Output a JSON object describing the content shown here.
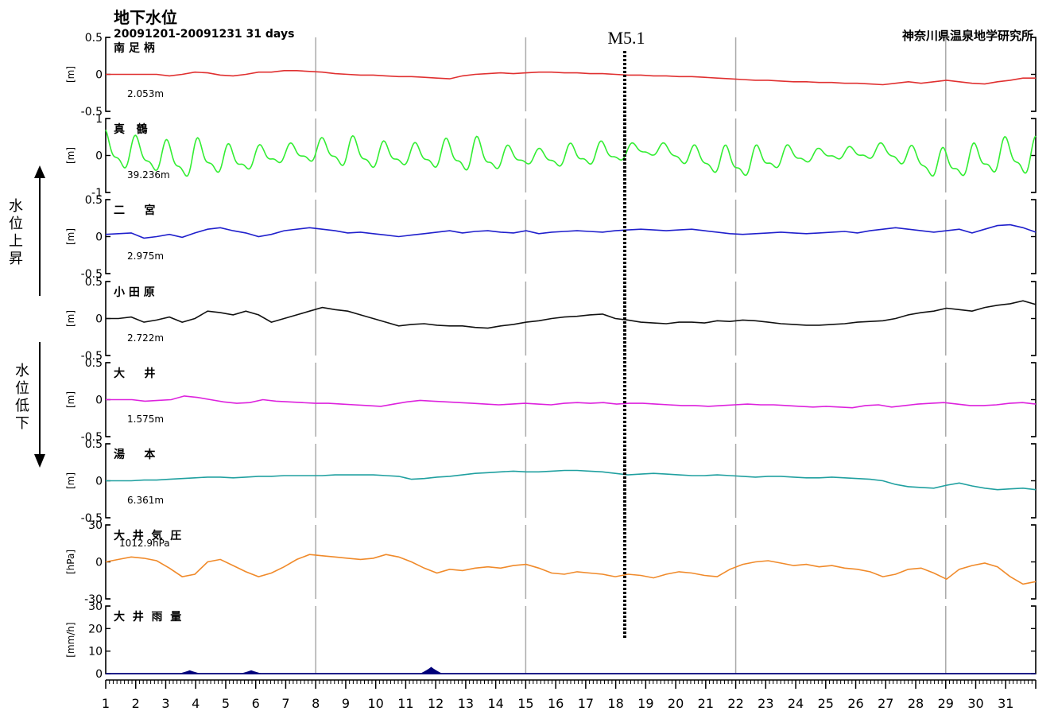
{
  "header": {
    "title": "地下水位",
    "period": "20091201-20091231 31 days",
    "organization": "神奈川県温泉地学研究所",
    "event_label": "M5.1",
    "rise_label": [
      "水",
      "位",
      "上",
      "昇"
    ],
    "fall_label": [
      "水",
      "位",
      "低",
      "下"
    ]
  },
  "chart_data": {
    "type": "line",
    "x_axis": {
      "ticks": [
        1,
        2,
        3,
        4,
        5,
        6,
        7,
        8,
        9,
        10,
        11,
        12,
        13,
        14,
        15,
        16,
        17,
        18,
        19,
        20,
        21,
        22,
        23,
        24,
        25,
        26,
        27,
        28,
        29,
        30,
        31
      ],
      "range": [
        1,
        32
      ],
      "week_lines": [
        8,
        15,
        22,
        29
      ]
    },
    "event_day": 18.3,
    "panels": [
      {
        "name": "南 足 柄",
        "unit": "[m]",
        "base": "2.053m",
        "ylim": [
          -0.5,
          0.5
        ],
        "tick_labels": [
          "0.5",
          "0",
          "-0.5"
        ],
        "color": "#e03030",
        "kind": "line",
        "values": [
          0.0,
          0.0,
          0.0,
          0.0,
          0.0,
          -0.02,
          0.0,
          0.03,
          0.02,
          -0.01,
          -0.02,
          0.0,
          0.03,
          0.03,
          0.05,
          0.05,
          0.04,
          0.03,
          0.01,
          0.0,
          -0.01,
          -0.01,
          -0.02,
          -0.03,
          -0.03,
          -0.04,
          -0.05,
          -0.06,
          -0.02,
          0.0,
          0.01,
          0.02,
          0.01,
          0.02,
          0.03,
          0.03,
          0.02,
          0.02,
          0.01,
          0.01,
          0.0,
          -0.01,
          -0.01,
          -0.02,
          -0.02,
          -0.03,
          -0.03,
          -0.04,
          -0.05,
          -0.06,
          -0.07,
          -0.08,
          -0.08,
          -0.09,
          -0.1,
          -0.1,
          -0.11,
          -0.11,
          -0.12,
          -0.12,
          -0.13,
          -0.14,
          -0.12,
          -0.1,
          -0.12,
          -0.1,
          -0.08,
          -0.1,
          -0.12,
          -0.13,
          -0.1,
          -0.08,
          -0.05,
          -0.05
        ]
      },
      {
        "name": "真   鶴",
        "unit": "[m]",
        "base": "39.236m",
        "ylim": [
          -1,
          1
        ],
        "tick_labels": [
          "1",
          "0",
          "-1"
        ],
        "color": "#33ee33",
        "kind": "tidal",
        "values": [
          0.3,
          0.25,
          0.2,
          0.15,
          0.1,
          0.05,
          0.0,
          0.05,
          0.1,
          0.05,
          0.0,
          0.05,
          0.1,
          0.15,
          0.2,
          0.2,
          0.25,
          0.25,
          0.25,
          0.2,
          0.2,
          0.15,
          0.15,
          0.15,
          0.15,
          0.15,
          0.15,
          0.15,
          0.15,
          0.15,
          0.1,
          0.1,
          0.1,
          0.1,
          0.1,
          0.1,
          0.1,
          0.15,
          0.2,
          0.2,
          0.2,
          0.25,
          0.3,
          0.3,
          0.25,
          0.2,
          0.1,
          0.05,
          0.0,
          -0.05,
          -0.05,
          0.0,
          0.05,
          0.1,
          0.15,
          0.15,
          0.15,
          0.2,
          0.2,
          0.2,
          0.25,
          0.25,
          0.2,
          0.1,
          0.0,
          -0.1,
          -0.1,
          -0.05,
          0.0,
          0.05,
          0.1,
          0.15,
          0.1,
          0.1
        ],
        "amplitude": [
          0.6,
          0.6,
          0.55,
          0.5,
          0.5,
          0.55,
          0.6,
          0.6,
          0.55,
          0.5,
          0.45,
          0.4,
          0.35,
          0.35,
          0.3,
          0.3,
          0.35,
          0.4,
          0.45,
          0.5,
          0.5,
          0.45,
          0.4,
          0.35,
          0.35,
          0.4,
          0.45,
          0.5,
          0.55,
          0.55,
          0.5,
          0.4,
          0.3,
          0.25,
          0.25,
          0.3,
          0.35,
          0.4,
          0.4,
          0.35,
          0.3,
          0.25,
          0.2,
          0.2,
          0.25,
          0.3,
          0.35,
          0.4,
          0.45,
          0.5,
          0.5,
          0.45,
          0.4,
          0.35,
          0.3,
          0.25,
          0.2,
          0.2,
          0.2,
          0.2,
          0.25,
          0.25,
          0.3,
          0.35,
          0.4,
          0.45,
          0.5,
          0.5,
          0.5,
          0.5,
          0.55,
          0.55,
          0.6,
          0.6
        ]
      },
      {
        "name": "二     宮",
        "unit": "[m]",
        "base": "2.975m",
        "ylim": [
          -0.5,
          0.5
        ],
        "tick_labels": [
          "0.5",
          "0",
          "-0.5"
        ],
        "color": "#2020cc",
        "kind": "line",
        "values": [
          0.03,
          0.04,
          0.05,
          -0.02,
          0.0,
          0.03,
          -0.01,
          0.05,
          0.1,
          0.12,
          0.08,
          0.05,
          0.0,
          0.03,
          0.08,
          0.1,
          0.12,
          0.1,
          0.08,
          0.05,
          0.06,
          0.04,
          0.02,
          0.0,
          0.02,
          0.04,
          0.06,
          0.08,
          0.05,
          0.07,
          0.08,
          0.06,
          0.05,
          0.08,
          0.04,
          0.06,
          0.07,
          0.08,
          0.07,
          0.06,
          0.08,
          0.09,
          0.1,
          0.09,
          0.08,
          0.09,
          0.1,
          0.08,
          0.06,
          0.04,
          0.03,
          0.04,
          0.05,
          0.06,
          0.05,
          0.04,
          0.05,
          0.06,
          0.07,
          0.05,
          0.08,
          0.1,
          0.12,
          0.1,
          0.08,
          0.06,
          0.08,
          0.1,
          0.05,
          0.1,
          0.15,
          0.16,
          0.12,
          0.06
        ]
      },
      {
        "name": "小 田 原",
        "unit": "[m]",
        "base": "2.722m",
        "ylim": [
          -0.5,
          0.5
        ],
        "tick_labels": [
          "0.5",
          "0",
          "-0.5"
        ],
        "color": "#111111",
        "kind": "line",
        "values": [
          0.0,
          0.0,
          0.02,
          -0.05,
          -0.02,
          0.02,
          -0.05,
          0.0,
          0.1,
          0.08,
          0.05,
          0.1,
          0.05,
          -0.05,
          0.0,
          0.05,
          0.1,
          0.15,
          0.12,
          0.1,
          0.05,
          0.0,
          -0.05,
          -0.1,
          -0.08,
          -0.07,
          -0.09,
          -0.1,
          -0.1,
          -0.12,
          -0.13,
          -0.1,
          -0.08,
          -0.05,
          -0.03,
          0.0,
          0.02,
          0.03,
          0.05,
          0.06,
          0.0,
          -0.02,
          -0.05,
          -0.06,
          -0.07,
          -0.05,
          -0.05,
          -0.06,
          -0.03,
          -0.04,
          -0.02,
          -0.03,
          -0.05,
          -0.07,
          -0.08,
          -0.09,
          -0.09,
          -0.08,
          -0.07,
          -0.05,
          -0.04,
          -0.03,
          0.0,
          0.05,
          0.08,
          0.1,
          0.14,
          0.12,
          0.1,
          0.15,
          0.18,
          0.2,
          0.24,
          0.19
        ]
      },
      {
        "name": "大     井",
        "unit": "[m]",
        "base": "1.575m",
        "ylim": [
          -0.5,
          0.5
        ],
        "tick_labels": [
          "0.5",
          "0",
          "-0.5"
        ],
        "color": "#dd22dd",
        "kind": "line",
        "values": [
          0.0,
          0.0,
          0.0,
          -0.02,
          -0.01,
          0.0,
          0.05,
          0.03,
          0.0,
          -0.03,
          -0.05,
          -0.04,
          0.0,
          -0.02,
          -0.03,
          -0.04,
          -0.05,
          -0.05,
          -0.06,
          -0.07,
          -0.08,
          -0.09,
          -0.06,
          -0.03,
          -0.01,
          -0.02,
          -0.03,
          -0.04,
          -0.05,
          -0.06,
          -0.07,
          -0.06,
          -0.05,
          -0.06,
          -0.07,
          -0.05,
          -0.04,
          -0.05,
          -0.04,
          -0.06,
          -0.05,
          -0.05,
          -0.06,
          -0.07,
          -0.08,
          -0.08,
          -0.09,
          -0.08,
          -0.07,
          -0.06,
          -0.07,
          -0.07,
          -0.08,
          -0.09,
          -0.1,
          -0.09,
          -0.1,
          -0.11,
          -0.08,
          -0.07,
          -0.1,
          -0.08,
          -0.06,
          -0.05,
          -0.04,
          -0.06,
          -0.08,
          -0.08,
          -0.07,
          -0.05,
          -0.04,
          -0.06
        ]
      },
      {
        "name": "湯     本",
        "unit": "[m]",
        "base": "6.361m",
        "ylim": [
          -0.5,
          0.5
        ],
        "tick_labels": [
          "0.5",
          "0",
          "-0.5"
        ],
        "color": "#20a0a0",
        "kind": "line",
        "values": [
          0.0,
          0.0,
          0.0,
          0.01,
          0.01,
          0.02,
          0.03,
          0.04,
          0.05,
          0.05,
          0.04,
          0.05,
          0.06,
          0.06,
          0.07,
          0.07,
          0.07,
          0.07,
          0.08,
          0.08,
          0.08,
          0.08,
          0.07,
          0.06,
          0.02,
          0.03,
          0.05,
          0.06,
          0.08,
          0.1,
          0.11,
          0.12,
          0.13,
          0.12,
          0.12,
          0.13,
          0.14,
          0.14,
          0.13,
          0.12,
          0.1,
          0.08,
          0.09,
          0.1,
          0.09,
          0.08,
          0.07,
          0.07,
          0.08,
          0.07,
          0.06,
          0.05,
          0.06,
          0.06,
          0.05,
          0.04,
          0.04,
          0.05,
          0.04,
          0.03,
          0.02,
          0.0,
          -0.05,
          -0.08,
          -0.09,
          -0.1,
          -0.06,
          -0.03,
          -0.07,
          -0.1,
          -0.12,
          -0.11,
          -0.1,
          -0.12
        ]
      },
      {
        "name": "大  井  気  圧",
        "unit": "[hPa]",
        "base": "1012.9hPa",
        "ylim": [
          -30,
          30
        ],
        "tick_labels": [
          "30",
          "0",
          "-30"
        ],
        "color": "#f08a2a",
        "kind": "line",
        "values": [
          0,
          2,
          4,
          3,
          1,
          -5,
          -12,
          -10,
          0,
          2,
          -3,
          -8,
          -12,
          -9,
          -4,
          2,
          6,
          5,
          4,
          3,
          2,
          3,
          6,
          4,
          0,
          -5,
          -9,
          -6,
          -7,
          -5,
          -4,
          -5,
          -3,
          -2,
          -5,
          -9,
          -10,
          -8,
          -9,
          -10,
          -12,
          -10,
          -11,
          -13,
          -10,
          -8,
          -9,
          -11,
          -12,
          -6,
          -2,
          0,
          1,
          -1,
          -3,
          -2,
          -4,
          -3,
          -5,
          -6,
          -8,
          -12,
          -10,
          -6,
          -5,
          -9,
          -14,
          -6,
          -3,
          -1,
          -4,
          -12,
          -18,
          -16
        ]
      },
      {
        "name": "大  井  雨  量",
        "unit": "[mm/h]",
        "base": "",
        "ylim": [
          0,
          30
        ],
        "tick_labels": [
          "30",
          "20",
          "10",
          "0"
        ],
        "color": "#00007a",
        "kind": "rain",
        "events": [
          {
            "day": 3.8,
            "value": 1.5
          },
          {
            "day": 5.85,
            "value": 1.5
          },
          {
            "day": 11.85,
            "value": 3
          }
        ]
      }
    ]
  }
}
